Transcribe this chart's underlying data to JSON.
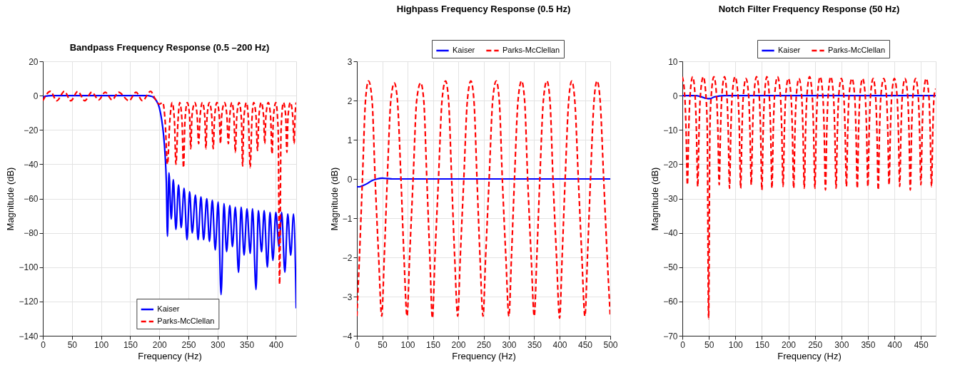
{
  "chart_data": [
    {
      "type": "line",
      "title": "Bandpass Frequency Response (0.5 –200 Hz)",
      "xlabel": "Frequency (Hz)",
      "ylabel": "Magnitude (dB)",
      "xlim": [
        0,
        435
      ],
      "xticks": [
        0,
        50,
        100,
        150,
        200,
        250,
        300,
        350,
        400
      ],
      "ylim": [
        -140,
        20
      ],
      "yticks": [
        -140,
        -120,
        -100,
        -80,
        -60,
        -40,
        -20,
        0,
        20
      ],
      "grid": true,
      "legend": "bottom",
      "series": [
        {
          "name": "Kaiser",
          "color": "#0000ff",
          "line_style": "solid",
          "x": [
            0,
            5,
            15,
            180,
            185,
            190,
            195,
            200,
            204,
            207,
            210,
            212,
            214,
            216.5,
            220.5,
            224,
            228.5,
            233,
            237.5,
            242.5,
            247.5,
            252,
            256.5,
            262,
            266.5,
            271.5,
            276,
            281.5,
            286,
            291,
            296,
            301,
            306,
            311,
            315.5,
            321,
            325.5,
            330.5,
            336,
            340.5,
            345.5,
            350.5,
            356,
            360,
            366,
            370,
            375.5,
            380,
            385.5,
            390,
            395,
            400,
            405.5,
            410,
            415.5,
            420.5,
            425.5,
            430.5,
            435
          ],
          "values": [
            -1,
            -0.3,
            0,
            0,
            -0.3,
            -1,
            -3,
            -7,
            -14,
            -22,
            -35,
            -50,
            -82,
            -45,
            -72,
            -49,
            -78,
            -52,
            -77,
            -54,
            -84,
            -56,
            -80,
            -58,
            -84,
            -59,
            -84,
            -60,
            -85,
            -61,
            -90,
            -62,
            -116,
            -63,
            -91,
            -64,
            -88,
            -65,
            -103,
            -65,
            -93,
            -66,
            -92,
            -66,
            -113,
            -67,
            -91,
            -67,
            -100,
            -68,
            -96,
            -68,
            -88,
            -68,
            -103,
            -69,
            -93,
            -69,
            -124
          ]
        },
        {
          "name": "Parks-McClellan",
          "color": "#ff0000",
          "line_style": "dashed",
          "x": [
            0,
            13,
            24,
            37,
            48,
            60,
            72,
            84,
            96,
            107,
            119,
            130,
            148,
            160,
            171,
            185,
            193,
            200,
            206,
            210,
            214,
            218,
            222,
            226,
            228.5,
            232,
            235,
            239,
            241.5,
            244,
            248,
            252,
            254,
            256,
            261,
            265,
            267.5,
            270,
            274,
            278,
            280,
            282,
            286,
            290,
            292.5,
            295,
            299,
            303,
            305,
            307,
            312,
            316,
            318.5,
            321,
            324.5,
            328,
            330.5,
            333,
            337,
            341,
            343,
            345,
            349.5,
            353,
            356,
            359,
            362,
            366,
            368.5,
            371,
            375,
            379,
            381,
            383,
            387,
            391,
            393.5,
            396,
            400,
            404,
            406.5,
            409,
            413,
            417,
            419,
            421,
            425,
            429,
            431.5,
            433,
            435
          ],
          "values": [
            -3,
            2.5,
            -3,
            2.5,
            -3,
            2.5,
            -3,
            2,
            -2.5,
            2,
            -2.5,
            2,
            -3,
            2,
            -3,
            2.5,
            -2,
            -5,
            -4,
            -15,
            -40,
            -15,
            -4,
            -15,
            -40,
            -15,
            -4,
            -15,
            -42,
            -15,
            -4,
            -12,
            -31,
            -12,
            -4,
            -12,
            -28,
            -12,
            -4,
            -12,
            -31,
            -12,
            -4,
            -12,
            -31,
            -12,
            -4,
            -12,
            -28,
            -12,
            -4,
            -12,
            -28,
            -12,
            -4,
            -12,
            -33,
            -12,
            -4,
            -14,
            -41,
            -14,
            -4,
            -14,
            -42,
            -14,
            -4,
            -12,
            -32,
            -12,
            -4,
            -12,
            -28,
            -12,
            -4,
            -12,
            -34,
            -12,
            -4,
            -20,
            -110,
            -20,
            -4,
            -12,
            -33,
            -12,
            -4,
            -12,
            -28,
            -12,
            -4
          ]
        }
      ]
    },
    {
      "type": "line",
      "title": "Highpass Frequency Response (0.5 Hz)",
      "xlabel": "Frequency (Hz)",
      "ylabel": "Magnitude (dB)",
      "xlim": [
        0,
        500
      ],
      "xticks": [
        0,
        50,
        100,
        150,
        200,
        250,
        300,
        350,
        400,
        450,
        500
      ],
      "ylim": [
        -4,
        3
      ],
      "yticks": [
        -4,
        -3,
        -2,
        -1,
        0,
        1,
        2,
        3
      ],
      "grid": true,
      "legend": "top right",
      "series": [
        {
          "name": "Kaiser",
          "color": "#0000ff",
          "line_style": "solid",
          "x": [
            0,
            5,
            10,
            20,
            30,
            40,
            50,
            60,
            70,
            500
          ],
          "values": [
            -0.2,
            -0.2,
            -0.18,
            -0.12,
            -0.04,
            0,
            0.02,
            0.01,
            0,
            0
          ]
        },
        {
          "name": "Parks-McClellan",
          "color": "#ff0000",
          "line_style": "dashed",
          "x": [
            0,
            5,
            11,
            17,
            23,
            30,
            36,
            43,
            49,
            54,
            60,
            67,
            74,
            80,
            87,
            93,
            99,
            104,
            111,
            118,
            126,
            132,
            138,
            144,
            149,
            154,
            161,
            168,
            175,
            181,
            187,
            193,
            199,
            204,
            211,
            218,
            225,
            231,
            237,
            243,
            249,
            254,
            261,
            268,
            275,
            281,
            287,
            294,
            300,
            305,
            311,
            318,
            325,
            331,
            337,
            344,
            350,
            355,
            361,
            368,
            375,
            381,
            387,
            394,
            400,
            405,
            411,
            418,
            424,
            430,
            437,
            444,
            450,
            455,
            461,
            468,
            474,
            480,
            487,
            494,
            500
          ],
          "values": [
            -3.5,
            -2,
            0,
            2,
            2.5,
            2,
            0,
            -2,
            -3.5,
            -2,
            0,
            2,
            2.45,
            2,
            0,
            -2,
            -3.5,
            -2,
            0,
            2,
            2.45,
            2,
            0,
            -2,
            -3.55,
            -2,
            0,
            2,
            2.5,
            2,
            0,
            -2,
            -3.5,
            -2,
            0,
            2,
            2.5,
            2,
            0,
            -2,
            -3.5,
            -2,
            0,
            2,
            2.5,
            2,
            0,
            -2,
            -3.5,
            -2,
            0,
            2,
            2.5,
            2,
            0,
            -2,
            -3.5,
            -2,
            0,
            2,
            2.5,
            2,
            0,
            -2,
            -3.55,
            -2,
            0,
            2,
            2.5,
            2,
            0,
            -2,
            -3.5,
            -2,
            0,
            2,
            2.5,
            2,
            0,
            -2,
            -3.5
          ]
        }
      ]
    },
    {
      "type": "line",
      "title": "Notch Filter Frequency Response (50 Hz)",
      "xlabel": "Frequency (Hz)",
      "ylabel": "Magnitude (dB)",
      "xlim": [
        0,
        478
      ],
      "xticks": [
        0,
        50,
        100,
        150,
        200,
        250,
        300,
        350,
        400,
        450
      ],
      "ylim": [
        -70,
        10
      ],
      "yticks": [
        -70,
        -60,
        -50,
        -40,
        -30,
        -20,
        -10,
        0,
        10
      ],
      "grid": true,
      "legend": "top right",
      "series": [
        {
          "name": "Kaiser",
          "color": "#0000ff",
          "line_style": "solid",
          "x": [
            0,
            25,
            35,
            45,
            52,
            60,
            70,
            80,
            478
          ],
          "values": [
            0,
            0,
            -0.3,
            -0.8,
            -0.9,
            -0.4,
            -0.1,
            0,
            0
          ]
        },
        {
          "name": "Parks-McClellan",
          "color": "#ff0000",
          "line_style": "dashed",
          "x": [
            0,
            4.5,
            7,
            9.5,
            12,
            14.5,
            19.5,
            24,
            26.5,
            29,
            31.5,
            34,
            39.5,
            44.5,
            47,
            49.5,
            52,
            54.5,
            59.5,
            64.5,
            67,
            69.5,
            72,
            74.5,
            79.5,
            84,
            86.5,
            89,
            91.5,
            94,
            99.5,
            105,
            107.5,
            110,
            112.5,
            115,
            120,
            125,
            127.5,
            130,
            132.5,
            135,
            140,
            145,
            147.5,
            150,
            152.5,
            155,
            159.5,
            164,
            166.5,
            169,
            171.5,
            174,
            179.5,
            185,
            187.5,
            190,
            192.5,
            195,
            200,
            205,
            207.5,
            210,
            212.5,
            215,
            220,
            225,
            227.5,
            230,
            232.5,
            235,
            240,
            245,
            247.5,
            250,
            252.5,
            255,
            260,
            265,
            267.5,
            270,
            272.5,
            275,
            280,
            285,
            287.5,
            290,
            292.5,
            295,
            300,
            304.5,
            307,
            309.5,
            312,
            314.5,
            320,
            325,
            327.5,
            330,
            332.5,
            335,
            340,
            345,
            347.5,
            350,
            352.5,
            355,
            360,
            364.5,
            367,
            369.5,
            372,
            374.5,
            380,
            385,
            387.5,
            390,
            392.5,
            395,
            400,
            405,
            407.5,
            410,
            412.5,
            415,
            420,
            425,
            427.5,
            430,
            432.5,
            435,
            440,
            445,
            447.5,
            450,
            452.5,
            455,
            460,
            465,
            467.5,
            470,
            472.5,
            475,
            478
          ],
          "values": [
            5.5,
            0,
            -10,
            -26,
            -10,
            0,
            5.5,
            0,
            -10,
            -26.5,
            -10,
            0,
            5.5,
            0,
            -10,
            -65,
            -10,
            0,
            5.5,
            0,
            -10,
            -26,
            -10,
            0,
            5.5,
            0,
            -10,
            -27,
            -10,
            0,
            5.5,
            0,
            -10,
            -27,
            -10,
            0,
            5,
            0,
            -10,
            -26,
            -10,
            0,
            5.5,
            0,
            -10,
            -27.5,
            -10,
            0,
            5.5,
            0,
            -10,
            -27,
            -10,
            0,
            5.5,
            0,
            -10,
            -26.5,
            -10,
            0,
            5,
            0,
            -10,
            -27,
            -10,
            0,
            5,
            0,
            -10,
            -27,
            -10,
            0,
            5.5,
            0,
            -10,
            -27,
            -10,
            0,
            5.5,
            0,
            -10,
            -27.5,
            -10,
            0,
            5.5,
            0,
            -10,
            -27,
            -10,
            0,
            5,
            0,
            -10,
            -26.5,
            -10,
            0,
            5,
            0,
            -10,
            -27,
            -10,
            0,
            5,
            0,
            -10,
            -26.5,
            -10,
            0,
            5,
            0,
            -10,
            -27.5,
            -10,
            0,
            5,
            0,
            -10,
            -26,
            -10,
            0,
            5,
            0,
            -10,
            -26.5,
            -10,
            0,
            5,
            0,
            -10,
            -27.5,
            -10,
            0,
            5,
            0,
            -10,
            -26,
            -10,
            0,
            5,
            0,
            -10,
            -26.5,
            -10,
            0,
            2
          ]
        }
      ]
    }
  ]
}
